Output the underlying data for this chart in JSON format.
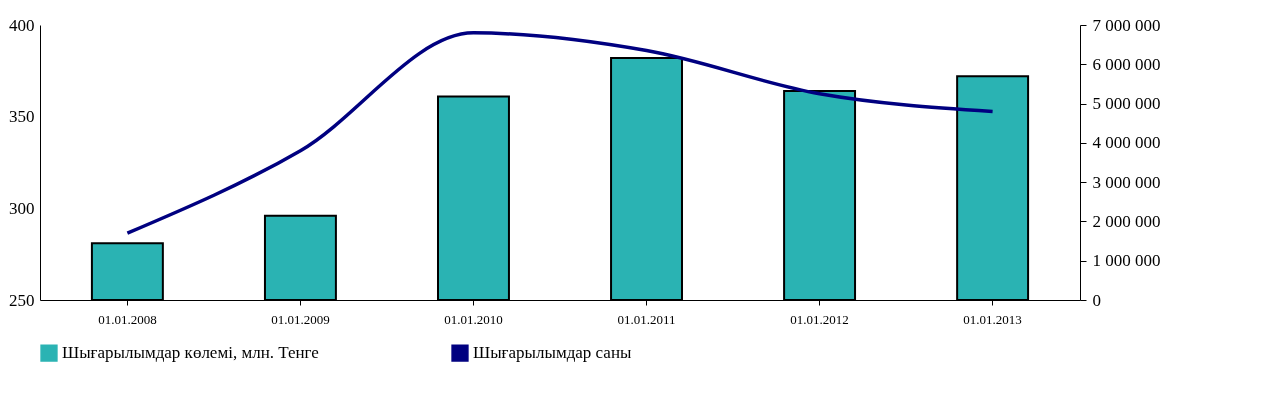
{
  "chart_data": {
    "type": "bar",
    "categories": [
      "01.01.2008",
      "01.01.2009",
      "01.01.2010",
      "01.01.2011",
      "01.01.2012",
      "01.01.2013"
    ],
    "series": [
      {
        "name": "Шығарылымдар көлемі, млн. Тенге",
        "color": "#2ab3b3",
        "values": [
          281,
          296,
          361,
          382,
          364,
          372
        ]
      },
      {
        "name": "Шығарылымдар саны",
        "type": "line",
        "axis": "y2",
        "color": "#000080",
        "values": [
          1700000,
          3800000,
          6800000,
          6350000,
          5250000,
          4800000
        ]
      }
    ],
    "ylim": [
      250,
      400
    ],
    "yticks": [
      250,
      300,
      350,
      400
    ],
    "y2lim": [
      0,
      7000000
    ],
    "y2ticks": [
      0,
      {
        "value": 1000000,
        "label": "1 000 000"
      },
      {
        "value": 2000000,
        "label": "2 000 000"
      },
      {
        "value": 3000000,
        "label": "3 000 000"
      },
      {
        "value": 4000000,
        "label": "4 000 000"
      },
      {
        "value": 5000000,
        "label": "5 000 000"
      },
      {
        "value": 6000000,
        "label": "6 000 000"
      },
      {
        "value": 7000000,
        "label": "7 000 000"
      }
    ],
    "grid": false,
    "legend": "bottom",
    "marker": "none",
    "line_style": "solid"
  }
}
